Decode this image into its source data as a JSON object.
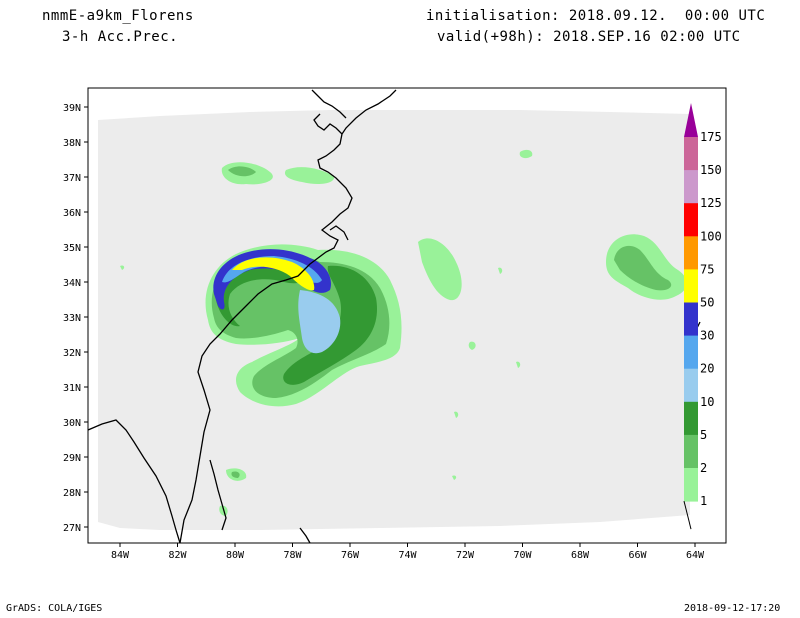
{
  "header": {
    "model": "nmmE-a9km_Florens",
    "field": "3-h Acc.Prec.",
    "init": "initialisation: 2018.09.12.  00:00 UTC",
    "valid": "valid(+98h): 2018.SEP.16 02:00 UTC"
  },
  "axes": {
    "lat_labels": [
      "39N",
      "38N",
      "37N",
      "36N",
      "35N",
      "34N",
      "33N",
      "32N",
      "31N",
      "30N",
      "29N",
      "28N",
      "27N"
    ],
    "lon_labels": [
      "84W",
      "82W",
      "80W",
      "78W",
      "76W",
      "74W",
      "72W",
      "70W",
      "68W",
      "66W",
      "64W"
    ]
  },
  "legend": {
    "labels": [
      "175",
      "150",
      "125",
      "100",
      "75",
      "50",
      "30",
      "20",
      "10",
      "5",
      "2",
      "1"
    ],
    "colors": [
      "#cc6699",
      "#cc99cc",
      "#ff0000",
      "#ff9900",
      "#ffff00",
      "#3333cc",
      "#55a7ee",
      "#99ccee",
      "#339933",
      "#66c266",
      "#99f299"
    ],
    "arrow_color": "#990099"
  },
  "footer": {
    "left": "GrADS: COLA/IGES",
    "right": "2018-09-12-17:20"
  }
}
